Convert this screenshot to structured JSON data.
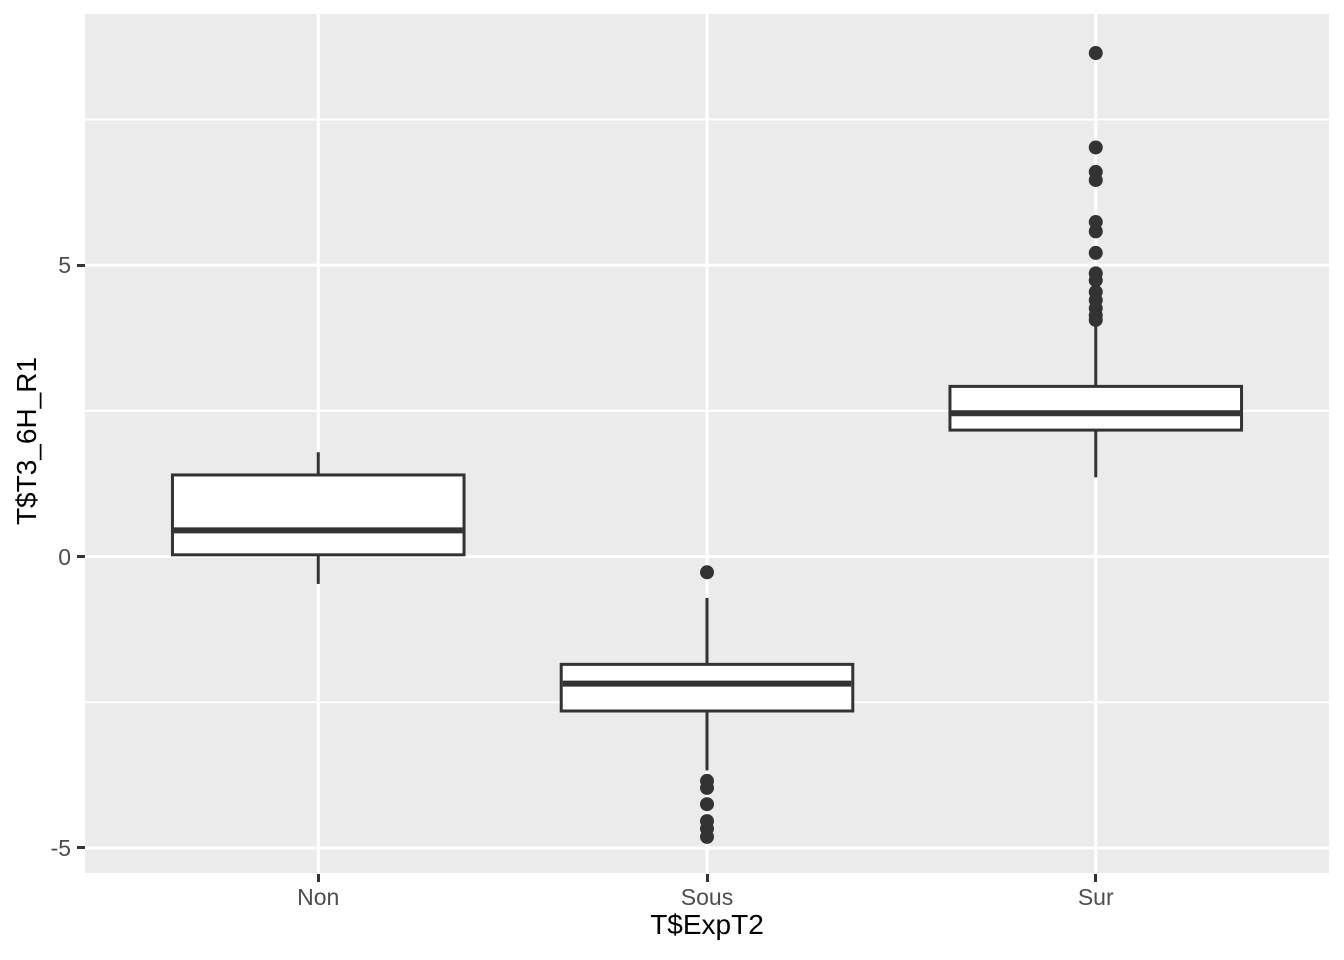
{
  "chart_data": {
    "type": "boxplot",
    "title": "",
    "xlabel": "T$ExpT2",
    "ylabel": "T$T3_6H_R1",
    "categories": [
      "Non",
      "Sous",
      "Sur"
    ],
    "x_tick_labels": [
      "Non",
      "Sous",
      "Sur"
    ],
    "y_major_ticks": [
      -5,
      0,
      5
    ],
    "y_major_tick_labels": [
      "-5",
      "0",
      "5"
    ],
    "y_minor_ticks": [
      -2.5,
      2.5,
      7.5
    ],
    "ylim": [
      -5.43,
      9.31
    ],
    "grid": "major-and-minor, white on grey panel",
    "legend": "none",
    "series": [
      {
        "category": "Non",
        "min": -0.47,
        "q1": 0.03,
        "median": 0.45,
        "q3": 1.4,
        "max": 1.79,
        "outliers": []
      },
      {
        "category": "Sous",
        "min": -3.67,
        "q1": -2.65,
        "median": -2.18,
        "q3": -1.85,
        "max": -0.71,
        "outliers": [
          -0.27,
          -3.85,
          -3.97,
          -4.25,
          -4.54,
          -4.67,
          -4.81
        ]
      },
      {
        "category": "Sur",
        "min": 1.36,
        "q1": 2.17,
        "median": 2.46,
        "q3": 2.92,
        "max": 3.97,
        "outliers": [
          8.64,
          7.02,
          6.6,
          6.46,
          5.74,
          5.58,
          5.21,
          4.86,
          4.74,
          4.54,
          4.4,
          4.26,
          4.14,
          4.06
        ]
      }
    ],
    "style": {
      "background": "#FFFFFF",
      "panel_bg": "#EBEBEB",
      "grid_color": "#FFFFFF",
      "box_fill": "#FFFFFF",
      "box_stroke": "#333333",
      "outlier_color": "#333333",
      "tick_mark_color": "#333333",
      "tick_label_color": "#4D4D4D",
      "axis_title_color": "#000000"
    }
  }
}
